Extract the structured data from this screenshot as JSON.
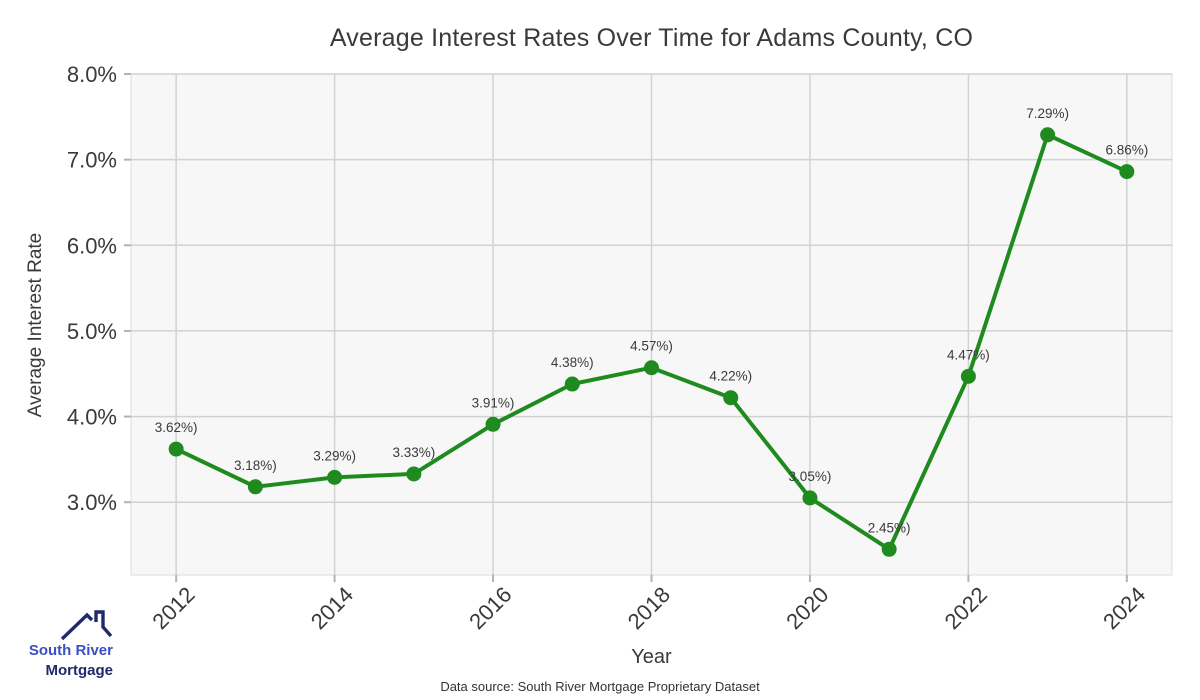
{
  "chart_data": {
    "type": "line",
    "title": "Average Interest Rates Over Time for Adams County, CO",
    "xlabel": "Year",
    "ylabel": "Average Interest Rate",
    "x": [
      2012,
      2013,
      2014,
      2015,
      2016,
      2017,
      2018,
      2019,
      2020,
      2021,
      2022,
      2023,
      2024
    ],
    "values": [
      3.62,
      3.18,
      3.29,
      3.33,
      3.91,
      4.38,
      4.57,
      4.22,
      3.05,
      2.45,
      4.47,
      7.29,
      6.86
    ],
    "point_labels": [
      "3.62%)",
      "3.18%)",
      "3.29%)",
      "3.33%)",
      "3.91%)",
      "4.38%)",
      "4.57%)",
      "4.22%)",
      "3.05%)",
      "2.45%)",
      "4.47%)",
      "7.29%)",
      "6.86%)"
    ],
    "xticks": [
      {
        "value": 2012,
        "label": "2012"
      },
      {
        "value": 2014,
        "label": "2014"
      },
      {
        "value": 2016,
        "label": "2016"
      },
      {
        "value": 2018,
        "label": "2018"
      },
      {
        "value": 2020,
        "label": "2020"
      },
      {
        "value": 2022,
        "label": "2022"
      },
      {
        "value": 2024,
        "label": "2024"
      }
    ],
    "yticks": [
      {
        "value": 3.0,
        "label": "3.0%"
      },
      {
        "value": 4.0,
        "label": "4.0%"
      },
      {
        "value": 5.0,
        "label": "5.0%"
      },
      {
        "value": 6.0,
        "label": "6.0%"
      },
      {
        "value": 7.0,
        "label": "7.0%"
      },
      {
        "value": 8.0,
        "label": "8.0%"
      }
    ],
    "xlim": [
      2011.43,
      2024.57
    ],
    "ylim": [
      2.15,
      8.0
    ],
    "grid": true,
    "legend": "none",
    "line_color": "#1f8b1f",
    "marker_color": "#1f8b1f",
    "plot_bg": "#f7f7f7",
    "grid_color": "#d2d2d2",
    "border_color": "#dcdcdc",
    "tick_color": "#b3b3b3",
    "text_color": "#3a3a3a"
  },
  "footer": {
    "source": "Data source: South River Mortgage Proprietary Dataset"
  },
  "logo": {
    "line1": "South River",
    "line2": "Mortgage",
    "color_primary": "#3a50c0",
    "color_secondary": "#20296b"
  }
}
